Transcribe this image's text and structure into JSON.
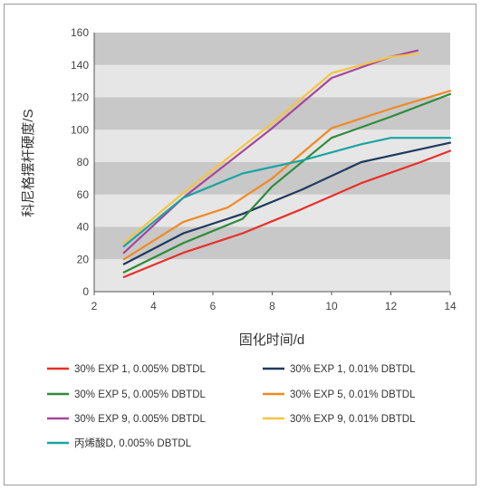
{
  "chart_data": {
    "type": "line",
    "title": "",
    "xlabel": "固化时间/d",
    "ylabel": "科尼格摆杆硬度/S",
    "xlim": [
      2,
      14
    ],
    "ylim": [
      0,
      160
    ],
    "xticks": [
      2,
      4,
      6,
      8,
      10,
      12,
      14
    ],
    "yticks": [
      0,
      20,
      40,
      60,
      80,
      100,
      120,
      140,
      160
    ],
    "grid": "alternating horizontal bands",
    "legend_position": "bottom",
    "series": [
      {
        "name": "30% EXP 1, 0.005% DBTDL",
        "color": "#e8302a",
        "x": [
          3,
          5,
          7,
          9,
          11,
          13,
          14
        ],
        "y": [
          9,
          24,
          36,
          51,
          67,
          80,
          87
        ]
      },
      {
        "name": "30% EXP 1, 0.01% DBTDL",
        "color": "#1f3a5f",
        "x": [
          3,
          5,
          7,
          9,
          11,
          13,
          14
        ],
        "y": [
          17,
          36,
          48,
          63,
          80,
          88,
          92
        ]
      },
      {
        "name": "30% EXP 5, 0.005% DBTDL",
        "color": "#2e8b3a",
        "x": [
          3,
          5,
          7,
          8,
          10,
          12,
          14
        ],
        "y": [
          12,
          30,
          45,
          65,
          95,
          108,
          122
        ]
      },
      {
        "name": "30% EXP 5, 0.01% DBTDL",
        "color": "#f08a24",
        "x": [
          3,
          5,
          6.5,
          8,
          10,
          12,
          14
        ],
        "y": [
          20,
          43,
          52,
          70,
          101,
          113,
          124
        ]
      },
      {
        "name": "30% EXP 9, 0.005% DBTDL",
        "color": "#a6469c",
        "x": [
          3,
          5,
          8,
          10,
          12,
          12.9
        ],
        "y": [
          24,
          58,
          101,
          132,
          145,
          149
        ]
      },
      {
        "name": "30% EXP 9, 0.01% DBTDL",
        "color": "#f4c542",
        "x": [
          3,
          5,
          8,
          10,
          12,
          12.9
        ],
        "y": [
          30,
          61,
          104,
          135,
          145,
          147
        ]
      },
      {
        "name": "丙烯酸D, 0.005% DBTDL",
        "color": "#1aa4a4",
        "x": [
          3,
          5,
          7,
          9,
          11,
          12,
          14
        ],
        "y": [
          28,
          58,
          73,
          81,
          91,
          95,
          95
        ]
      }
    ]
  }
}
